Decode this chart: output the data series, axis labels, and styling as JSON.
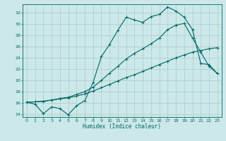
{
  "xlabel": "Humidex (Indice chaleur)",
  "xlim": [
    -0.5,
    23.5
  ],
  "ylim": [
    13.5,
    33.5
  ],
  "yticks": [
    14,
    16,
    18,
    20,
    22,
    24,
    26,
    28,
    30,
    32
  ],
  "xticks": [
    0,
    1,
    2,
    3,
    4,
    5,
    6,
    7,
    8,
    9,
    10,
    11,
    12,
    13,
    14,
    15,
    16,
    17,
    18,
    19,
    20,
    21,
    22,
    23
  ],
  "bg_color": "#cce8e8",
  "grid_color": "#aacccc",
  "line_color": "#006666",
  "line1": [
    16.1,
    15.8,
    14.1,
    15.3,
    15.0,
    13.9,
    15.5,
    16.4,
    19.6,
    24.2,
    26.4,
    28.9,
    31.2,
    30.7,
    30.3,
    31.3,
    31.7,
    33.0,
    32.3,
    31.2,
    29.0,
    23.0,
    22.8,
    21.2
  ],
  "line2": [
    16.1,
    16.2,
    16.3,
    16.5,
    16.7,
    16.9,
    17.2,
    17.6,
    18.1,
    18.7,
    19.3,
    19.9,
    20.5,
    21.0,
    21.6,
    22.2,
    22.8,
    23.4,
    24.0,
    24.5,
    25.0,
    25.3,
    25.6,
    25.8
  ],
  "line3": [
    16.1,
    16.2,
    16.3,
    16.5,
    16.8,
    17.0,
    17.5,
    18.0,
    18.8,
    20.0,
    21.3,
    22.5,
    23.8,
    24.8,
    25.6,
    26.5,
    27.5,
    29.0,
    29.8,
    30.1,
    27.5,
    25.0,
    22.5,
    21.2
  ],
  "marker": "+",
  "lw": 0.8,
  "ms": 3.5
}
